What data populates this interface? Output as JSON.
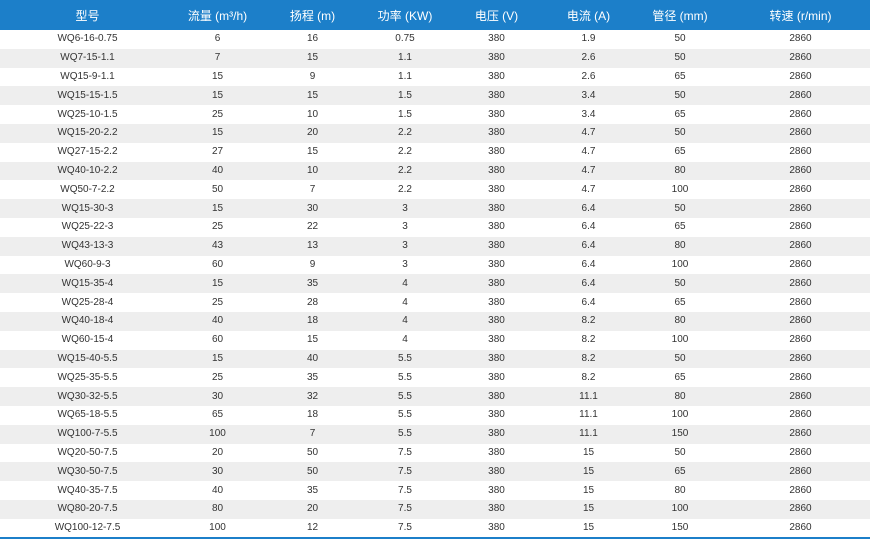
{
  "table": {
    "headers": [
      "型号",
      "流量 (m³/h)",
      "扬程 (m)",
      "功率 (KW)",
      "电压 (V)",
      "电流 (A)",
      "管径 (mm)",
      "转速 (r/min)"
    ],
    "rows": [
      [
        "WQ6-16-0.75",
        "6",
        "16",
        "0.75",
        "380",
        "1.9",
        "50",
        "2860"
      ],
      [
        "WQ7-15-1.1",
        "7",
        "15",
        "1.1",
        "380",
        "2.6",
        "50",
        "2860"
      ],
      [
        "WQ15-9-1.1",
        "15",
        "9",
        "1.1",
        "380",
        "2.6",
        "65",
        "2860"
      ],
      [
        "WQ15-15-1.5",
        "15",
        "15",
        "1.5",
        "380",
        "3.4",
        "50",
        "2860"
      ],
      [
        "WQ25-10-1.5",
        "25",
        "10",
        "1.5",
        "380",
        "3.4",
        "65",
        "2860"
      ],
      [
        "WQ15-20-2.2",
        "15",
        "20",
        "2.2",
        "380",
        "4.7",
        "50",
        "2860"
      ],
      [
        "WQ27-15-2.2",
        "27",
        "15",
        "2.2",
        "380",
        "4.7",
        "65",
        "2860"
      ],
      [
        "WQ40-10-2.2",
        "40",
        "10",
        "2.2",
        "380",
        "4.7",
        "80",
        "2860"
      ],
      [
        "WQ50-7-2.2",
        "50",
        "7",
        "2.2",
        "380",
        "4.7",
        "100",
        "2860"
      ],
      [
        "WQ15-30-3",
        "15",
        "30",
        "3",
        "380",
        "6.4",
        "50",
        "2860"
      ],
      [
        "WQ25-22-3",
        "25",
        "22",
        "3",
        "380",
        "6.4",
        "65",
        "2860"
      ],
      [
        "WQ43-13-3",
        "43",
        "13",
        "3",
        "380",
        "6.4",
        "80",
        "2860"
      ],
      [
        "WQ60-9-3",
        "60",
        "9",
        "3",
        "380",
        "6.4",
        "100",
        "2860"
      ],
      [
        "WQ15-35-4",
        "15",
        "35",
        "4",
        "380",
        "6.4",
        "50",
        "2860"
      ],
      [
        "WQ25-28-4",
        "25",
        "28",
        "4",
        "380",
        "6.4",
        "65",
        "2860"
      ],
      [
        "WQ40-18-4",
        "40",
        "18",
        "4",
        "380",
        "8.2",
        "80",
        "2860"
      ],
      [
        "WQ60-15-4",
        "60",
        "15",
        "4",
        "380",
        "8.2",
        "100",
        "2860"
      ],
      [
        "WQ15-40-5.5",
        "15",
        "40",
        "5.5",
        "380",
        "8.2",
        "50",
        "2860"
      ],
      [
        "WQ25-35-5.5",
        "25",
        "35",
        "5.5",
        "380",
        "8.2",
        "65",
        "2860"
      ],
      [
        "WQ30-32-5.5",
        "30",
        "32",
        "5.5",
        "380",
        "11.1",
        "80",
        "2860"
      ],
      [
        "WQ65-18-5.5",
        "65",
        "18",
        "5.5",
        "380",
        "11.1",
        "100",
        "2860"
      ],
      [
        "WQ100-7-5.5",
        "100",
        "7",
        "5.5",
        "380",
        "11.1",
        "150",
        "2860"
      ],
      [
        "WQ20-50-7.5",
        "20",
        "50",
        "7.5",
        "380",
        "15",
        "50",
        "2860"
      ],
      [
        "WQ30-50-7.5",
        "30",
        "50",
        "7.5",
        "380",
        "15",
        "65",
        "2860"
      ],
      [
        "WQ40-35-7.5",
        "40",
        "35",
        "7.5",
        "380",
        "15",
        "80",
        "2860"
      ],
      [
        "WQ80-20-7.5",
        "80",
        "20",
        "7.5",
        "380",
        "15",
        "100",
        "2860"
      ],
      [
        "WQ100-12-7.5",
        "100",
        "12",
        "7.5",
        "380",
        "15",
        "150",
        "2860"
      ]
    ]
  }
}
